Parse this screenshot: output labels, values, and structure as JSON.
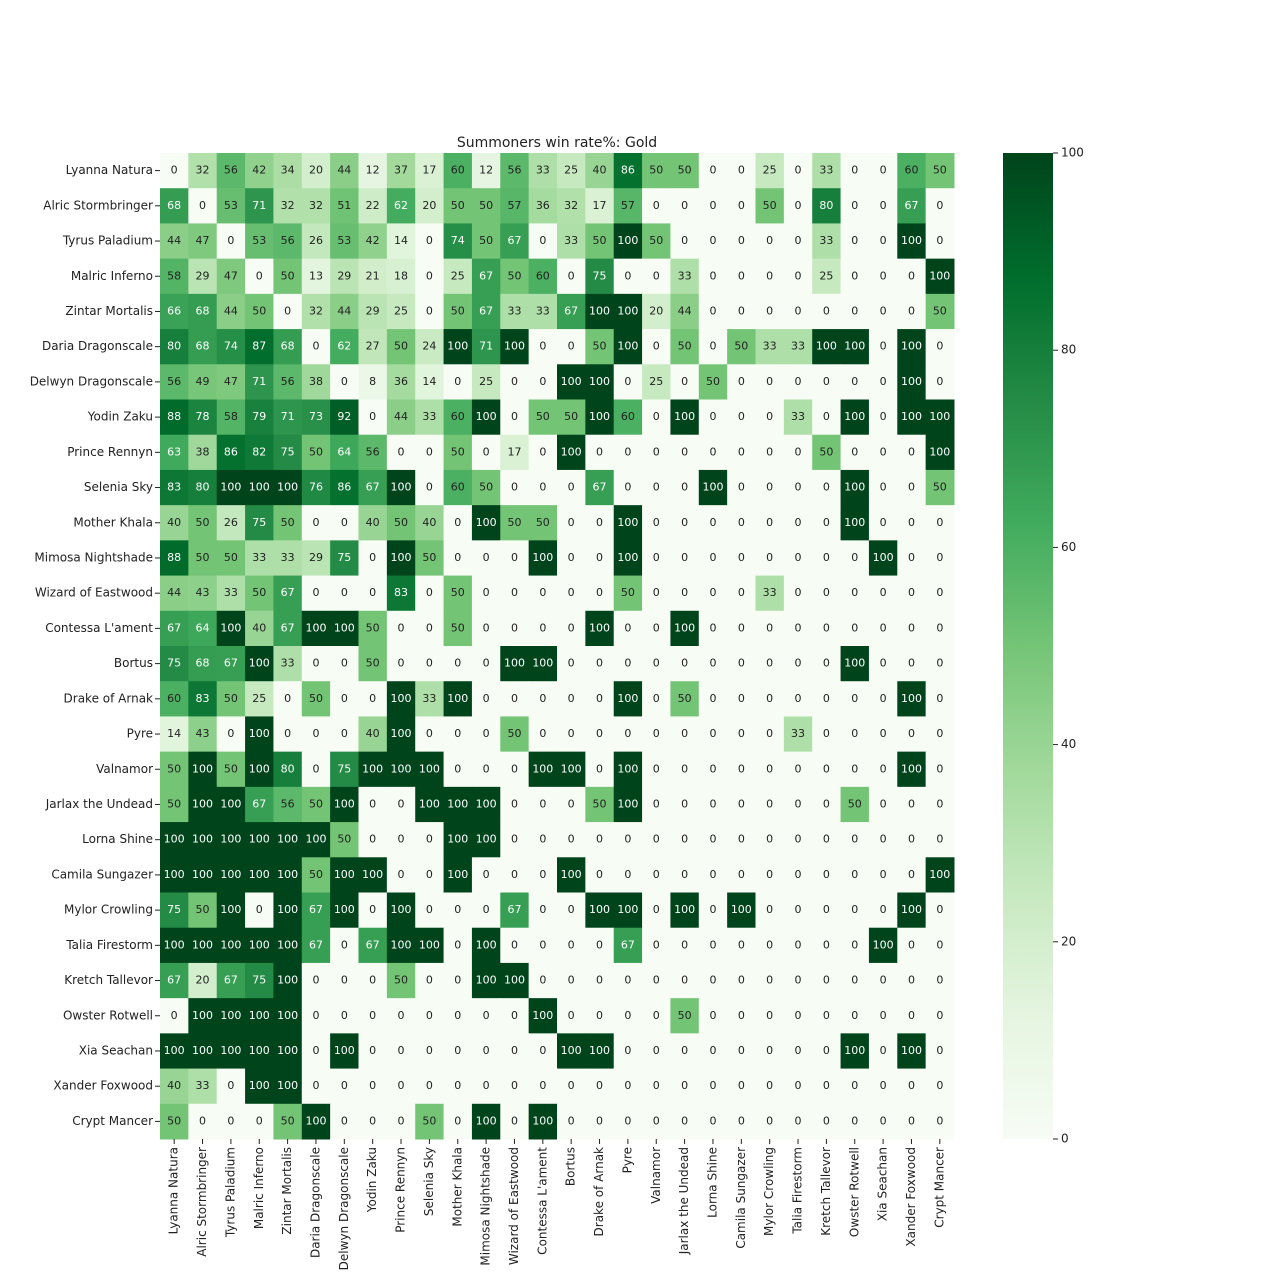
{
  "chart_data": {
    "type": "heatmap",
    "title": "Summoners win rate%: Gold",
    "x_categories": [
      "Lyanna Natura",
      "Alric Stormbringer",
      "Tyrus Paladium",
      "Malric Inferno",
      "Zintar Mortalis",
      "Daria Dragonscale",
      "Delwyn Dragonscale",
      "Yodin Zaku",
      "Prince Rennyn",
      "Selenia Sky",
      "Mother Khala",
      "Mimosa Nightshade",
      "Wizard of Eastwood",
      "Contessa L'ament",
      "Bortus",
      "Drake of Arnak",
      "Pyre",
      "Valnamor",
      "Jarlax the Undead",
      "Lorna Shine",
      "Camila Sungazer",
      "Mylor Crowling",
      "Talia Firestorm",
      "Kretch Tallevor",
      "Owster Rotwell",
      "Xia Seachan",
      "Xander Foxwood",
      "Crypt Mancer"
    ],
    "y_categories": [
      "Lyanna Natura",
      "Alric Stormbringer",
      "Tyrus Paladium",
      "Malric Inferno",
      "Zintar Mortalis",
      "Daria Dragonscale",
      "Delwyn Dragonscale",
      "Yodin Zaku",
      "Prince Rennyn",
      "Selenia Sky",
      "Mother Khala",
      "Mimosa Nightshade",
      "Wizard of Eastwood",
      "Contessa L'ament",
      "Bortus",
      "Drake of Arnak",
      "Pyre",
      "Valnamor",
      "Jarlax the Undead",
      "Lorna Shine",
      "Camila Sungazer",
      "Mylor Crowling",
      "Talia Firestorm",
      "Kretch Tallevor",
      "Owster Rotwell",
      "Xia Seachan",
      "Xander Foxwood",
      "Crypt Mancer"
    ],
    "values": [
      [
        0,
        32,
        56,
        42,
        34,
        20,
        44,
        12,
        37,
        17,
        60,
        12,
        56,
        33,
        25,
        40,
        86,
        50,
        50,
        0,
        0,
        25,
        0,
        33,
        0,
        0,
        60,
        50
      ],
      [
        68,
        0,
        53,
        71,
        32,
        32,
        51,
        22,
        62,
        20,
        50,
        50,
        57,
        36,
        32,
        17,
        57,
        0,
        0,
        0,
        0,
        50,
        0,
        80,
        0,
        0,
        67,
        0
      ],
      [
        44,
        47,
        0,
        53,
        56,
        26,
        53,
        42,
        14,
        0,
        74,
        50,
        67,
        0,
        33,
        50,
        100,
        50,
        0,
        0,
        0,
        0,
        0,
        33,
        0,
        0,
        100,
        0
      ],
      [
        58,
        29,
        47,
        0,
        50,
        13,
        29,
        21,
        18,
        0,
        25,
        67,
        50,
        60,
        0,
        75,
        0,
        0,
        33,
        0,
        0,
        0,
        0,
        25,
        0,
        0,
        0,
        100
      ],
      [
        66,
        68,
        44,
        50,
        0,
        32,
        44,
        29,
        25,
        0,
        50,
        67,
        33,
        33,
        67,
        100,
        100,
        20,
        44,
        0,
        0,
        0,
        0,
        0,
        0,
        0,
        0,
        50
      ],
      [
        80,
        68,
        74,
        87,
        68,
        0,
        62,
        27,
        50,
        24,
        100,
        71,
        100,
        0,
        0,
        50,
        100,
        0,
        50,
        0,
        50,
        33,
        33,
        100,
        100,
        0,
        100,
        0
      ],
      [
        56,
        49,
        47,
        71,
        56,
        38,
        0,
        8,
        36,
        14,
        0,
        25,
        0,
        0,
        100,
        100,
        0,
        25,
        0,
        50,
        0,
        0,
        0,
        0,
        0,
        0,
        100,
        0
      ],
      [
        88,
        78,
        58,
        79,
        71,
        73,
        92,
        0,
        44,
        33,
        60,
        100,
        0,
        50,
        50,
        100,
        60,
        0,
        100,
        0,
        0,
        0,
        33,
        0,
        100,
        0,
        100,
        100
      ],
      [
        63,
        38,
        86,
        82,
        75,
        50,
        64,
        56,
        0,
        0,
        50,
        0,
        17,
        0,
        100,
        0,
        0,
        0,
        0,
        0,
        0,
        0,
        0,
        50,
        0,
        0,
        0,
        100
      ],
      [
        83,
        80,
        100,
        100,
        100,
        76,
        86,
        67,
        100,
        0,
        60,
        50,
        0,
        0,
        0,
        67,
        0,
        0,
        0,
        100,
        0,
        0,
        0,
        0,
        100,
        0,
        0,
        50
      ],
      [
        40,
        50,
        26,
        75,
        50,
        0,
        0,
        40,
        50,
        40,
        0,
        100,
        50,
        50,
        0,
        0,
        100,
        0,
        0,
        0,
        0,
        0,
        0,
        0,
        100,
        0,
        0,
        0
      ],
      [
        88,
        50,
        50,
        33,
        33,
        29,
        75,
        0,
        100,
        50,
        0,
        0,
        0,
        100,
        0,
        0,
        100,
        0,
        0,
        0,
        0,
        0,
        0,
        0,
        0,
        100,
        0,
        0
      ],
      [
        44,
        43,
        33,
        50,
        67,
        0,
        0,
        0,
        83,
        0,
        50,
        0,
        0,
        0,
        0,
        0,
        50,
        0,
        0,
        0,
        0,
        33,
        0,
        0,
        0,
        0,
        0,
        0
      ],
      [
        67,
        64,
        100,
        40,
        67,
        100,
        100,
        50,
        0,
        0,
        50,
        0,
        0,
        0,
        0,
        100,
        0,
        0,
        100,
        0,
        0,
        0,
        0,
        0,
        0,
        0,
        0,
        0
      ],
      [
        75,
        68,
        67,
        100,
        33,
        0,
        0,
        50,
        0,
        0,
        0,
        0,
        100,
        100,
        0,
        0,
        0,
        0,
        0,
        0,
        0,
        0,
        0,
        0,
        100,
        0,
        0,
        0
      ],
      [
        60,
        83,
        50,
        25,
        0,
        50,
        0,
        0,
        100,
        33,
        100,
        0,
        0,
        0,
        0,
        0,
        100,
        0,
        50,
        0,
        0,
        0,
        0,
        0,
        0,
        0,
        100,
        0
      ],
      [
        14,
        43,
        0,
        100,
        0,
        0,
        0,
        40,
        100,
        0,
        0,
        0,
        50,
        0,
        0,
        0,
        0,
        0,
        0,
        0,
        0,
        0,
        33,
        0,
        0,
        0,
        0,
        0
      ],
      [
        50,
        100,
        50,
        100,
        80,
        0,
        75,
        100,
        100,
        100,
        0,
        0,
        0,
        100,
        100,
        0,
        100,
        0,
        0,
        0,
        0,
        0,
        0,
        0,
        0,
        0,
        100,
        0
      ],
      [
        50,
        100,
        100,
        67,
        56,
        50,
        100,
        0,
        0,
        100,
        100,
        100,
        0,
        0,
        0,
        50,
        100,
        0,
        0,
        0,
        0,
        0,
        0,
        0,
        50,
        0,
        0,
        0
      ],
      [
        100,
        100,
        100,
        100,
        100,
        100,
        50,
        0,
        0,
        0,
        100,
        100,
        0,
        0,
        0,
        0,
        0,
        0,
        0,
        0,
        0,
        0,
        0,
        0,
        0,
        0,
        0,
        0
      ],
      [
        100,
        100,
        100,
        100,
        100,
        50,
        100,
        100,
        0,
        0,
        100,
        0,
        0,
        0,
        100,
        0,
        0,
        0,
        0,
        0,
        0,
        0,
        0,
        0,
        0,
        0,
        0,
        100
      ],
      [
        75,
        50,
        100,
        0,
        100,
        67,
        100,
        0,
        100,
        0,
        0,
        0,
        67,
        0,
        0,
        100,
        100,
        0,
        100,
        0,
        100,
        0,
        0,
        0,
        0,
        0,
        100,
        0
      ],
      [
        100,
        100,
        100,
        100,
        100,
        67,
        0,
        67,
        100,
        100,
        0,
        100,
        0,
        0,
        0,
        0,
        67,
        0,
        0,
        0,
        0,
        0,
        0,
        0,
        0,
        100,
        0,
        0
      ],
      [
        67,
        20,
        67,
        75,
        100,
        0,
        0,
        0,
        50,
        0,
        0,
        100,
        100,
        0,
        0,
        0,
        0,
        0,
        0,
        0,
        0,
        0,
        0,
        0,
        0,
        0,
        0,
        0
      ],
      [
        0,
        100,
        100,
        100,
        100,
        0,
        0,
        0,
        0,
        0,
        0,
        0,
        0,
        100,
        0,
        0,
        0,
        0,
        50,
        0,
        0,
        0,
        0,
        0,
        0,
        0,
        0,
        0
      ],
      [
        100,
        100,
        100,
        100,
        100,
        0,
        100,
        0,
        0,
        0,
        0,
        0,
        0,
        0,
        100,
        100,
        0,
        0,
        0,
        0,
        0,
        0,
        0,
        0,
        100,
        0,
        100,
        0
      ],
      [
        40,
        33,
        0,
        100,
        100,
        0,
        0,
        0,
        0,
        0,
        0,
        0,
        0,
        0,
        0,
        0,
        0,
        0,
        0,
        0,
        0,
        0,
        0,
        0,
        0,
        0,
        0,
        0
      ],
      [
        50,
        0,
        0,
        0,
        50,
        100,
        0,
        0,
        0,
        50,
        0,
        100,
        0,
        100,
        0,
        0,
        0,
        0,
        0,
        0,
        0,
        0,
        0,
        0,
        0,
        0,
        0,
        0
      ]
    ],
    "zlim": [
      0,
      100
    ],
    "zticks": [
      0,
      20,
      40,
      60,
      80,
      100
    ],
    "colormap": "Greens"
  }
}
